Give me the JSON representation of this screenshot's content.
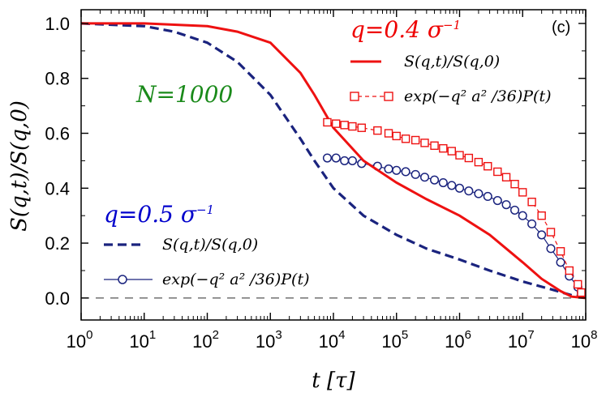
{
  "chart_data": {
    "type": "line",
    "panel_label": "(c)",
    "xlabel": "t [τ]",
    "ylabel": "S(q,t)/S(q,0)",
    "xscale": "log",
    "xlim": [
      1,
      100000000
    ],
    "ylim": [
      -0.08,
      1.05
    ],
    "x_ticks": [
      {
        "base": "10",
        "exp": "0",
        "value": 1
      },
      {
        "base": "10",
        "exp": "1",
        "value": 10
      },
      {
        "base": "10",
        "exp": "2",
        "value": 100
      },
      {
        "base": "10",
        "exp": "3",
        "value": 1000
      },
      {
        "base": "10",
        "exp": "4",
        "value": 10000
      },
      {
        "base": "10",
        "exp": "5",
        "value": 100000
      },
      {
        "base": "10",
        "exp": "6",
        "value": 1000000
      },
      {
        "base": "10",
        "exp": "7",
        "value": 10000000
      },
      {
        "base": "10",
        "exp": "8",
        "value": 100000000
      }
    ],
    "y_ticks": [
      "0.0",
      "0.2",
      "0.4",
      "0.6",
      "0.8",
      "1.0"
    ],
    "system_annotation": "N=1000",
    "reference_line": {
      "y": 0.0,
      "style": "dashed",
      "color": "#555555"
    },
    "groups": [
      {
        "q_label": "q=0.5 σ",
        "q_exp": "−1",
        "color": "#0000cc",
        "series": [
          {
            "name": "S(q,t)/S(q,0)",
            "style": "dashed",
            "color": "#1a237e",
            "x": [
              1,
              10,
              30,
              100,
              300,
              1000,
              3000,
              5000,
              10000,
              30000,
              100000,
              300000,
              1000000,
              3000000,
              10000000,
              30000000,
              60000000,
              100000000
            ],
            "y": [
              1.0,
              0.99,
              0.97,
              0.93,
              0.86,
              0.74,
              0.58,
              0.5,
              0.4,
              0.3,
              0.23,
              0.18,
              0.14,
              0.1,
              0.06,
              0.03,
              0.01,
              0.005
            ]
          },
          {
            "name": "exp(−q² a² /36)P(t)",
            "style": "circles",
            "color": "#1a237e",
            "x": [
              8000,
              11000,
              15000,
              20000,
              28000,
              50000,
              75000,
              100000,
              140000,
              200000,
              280000,
              400000,
              550000,
              750000,
              1000000,
              1400000,
              2000000,
              2800000,
              4000000,
              5500000,
              7500000,
              10000000,
              14000000,
              20000000,
              28000000,
              40000000,
              55000000,
              75000000,
              85000000
            ],
            "y": [
              0.51,
              0.51,
              0.5,
              0.5,
              0.49,
              0.48,
              0.47,
              0.465,
              0.46,
              0.45,
              0.44,
              0.43,
              0.42,
              0.41,
              0.4,
              0.39,
              0.38,
              0.37,
              0.355,
              0.34,
              0.32,
              0.3,
              0.27,
              0.23,
              0.18,
              0.13,
              0.08,
              0.04,
              0.02
            ]
          }
        ]
      },
      {
        "q_label": "q=0.4 σ",
        "q_exp": "−1",
        "color": "#ee0000",
        "series": [
          {
            "name": "S(q,t)/S(q,0)",
            "style": "solid",
            "color": "#ee1111",
            "x": [
              1,
              10,
              100,
              300,
              1000,
              3000,
              5000,
              10000,
              30000,
              100000,
              300000,
              1000000,
              3000000,
              10000000,
              20000000,
              40000000,
              60000000,
              100000000
            ],
            "y": [
              1.0,
              1.0,
              0.99,
              0.97,
              0.93,
              0.82,
              0.74,
              0.62,
              0.5,
              0.42,
              0.36,
              0.3,
              0.23,
              0.13,
              0.07,
              0.025,
              0.005,
              0.0
            ]
          },
          {
            "name": "exp(−q² a² /36)P(t)",
            "style": "squares",
            "color": "#ee1111",
            "x": [
              8000,
              11000,
              15000,
              20000,
              28000,
              50000,
              75000,
              100000,
              140000,
              200000,
              280000,
              400000,
              550000,
              750000,
              1000000,
              1400000,
              2000000,
              2800000,
              4000000,
              5500000,
              7500000,
              10000000,
              14000000,
              20000000,
              28000000,
              40000000,
              55000000,
              75000000,
              85000000
            ],
            "y": [
              0.64,
              0.635,
              0.63,
              0.625,
              0.62,
              0.61,
              0.6,
              0.59,
              0.58,
              0.575,
              0.565,
              0.555,
              0.545,
              0.535,
              0.52,
              0.51,
              0.495,
              0.48,
              0.46,
              0.44,
              0.415,
              0.385,
              0.35,
              0.3,
              0.24,
              0.17,
              0.1,
              0.05,
              0.02
            ]
          }
        ]
      }
    ]
  }
}
